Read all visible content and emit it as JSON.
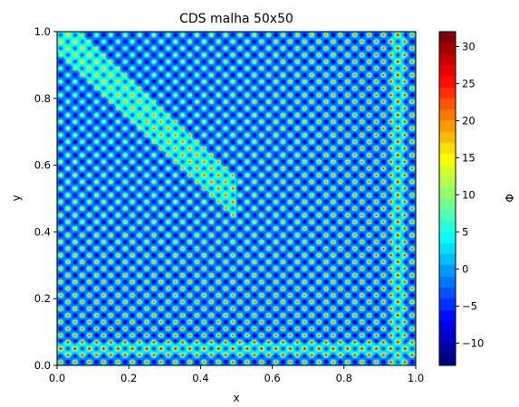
{
  "chart_data": {
    "type": "heatmap",
    "title": "CDS malha 50x50",
    "xlabel": "x",
    "ylabel": "y",
    "colorbar_label": "Φ",
    "xlim": [
      0.0,
      1.0
    ],
    "ylim": [
      0.0,
      1.0
    ],
    "x_ticks": [
      "0.0",
      "0.2",
      "0.4",
      "0.6",
      "0.8",
      "1.0"
    ],
    "y_ticks": [
      "0.0",
      "0.2",
      "0.4",
      "0.6",
      "0.8",
      "1.0"
    ],
    "grid": false,
    "colormap": "jet",
    "color_range": [
      -13,
      32
    ],
    "colorbar_ticks": [
      "−10",
      "−5",
      "0",
      "5",
      "10",
      "15",
      "20",
      "25",
      "30"
    ],
    "colorbar_tick_values": [
      -10,
      -5,
      0,
      5,
      10,
      15,
      20,
      25,
      30
    ],
    "mesh": [
      50,
      50
    ],
    "field_description": "Checkerboard oscillation of Φ (odd-even decoupling) over the unit square; cell peaks reach about 32, troughs about -12; oscillation amplitude grows toward the lower-right; a diagonal band of moderate values runs from the top-left corner toward the center and then along x≈0.95 and y≈0.05"
  }
}
